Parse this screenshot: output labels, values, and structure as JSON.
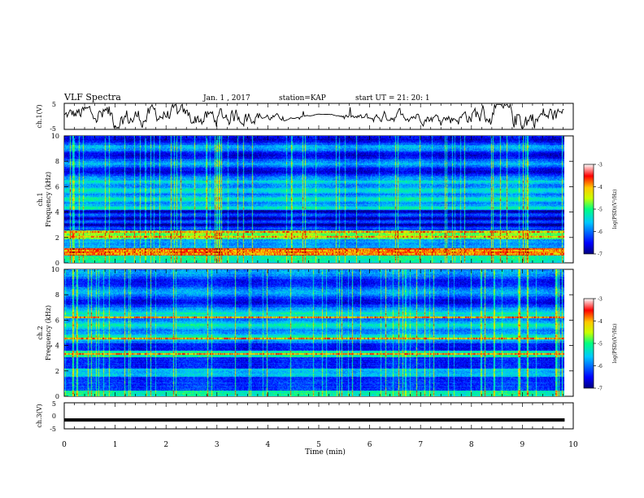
{
  "header": {
    "title": "VLF Spectra",
    "date": "Jan. 1 , 2017",
    "station": "station=KAP",
    "start_ut": "start UT = 21: 20: 1"
  },
  "chart_data": [
    {
      "type": "line",
      "panel": "ch1-waveform",
      "ylabel": "ch.1(V)",
      "ylim": [
        -5,
        5
      ],
      "yticks": [
        "5",
        "-5"
      ],
      "xlim": [
        0,
        10
      ],
      "shape": "noisy waveform, roughly between -3 and +4 V"
    },
    {
      "type": "heatmap",
      "panel": "ch1-spectrogram",
      "ylabel_line1": "ch.1",
      "ylabel_line2": "Frequency (kHz)",
      "ylim": [
        0,
        10
      ],
      "yticks": [
        "0",
        "2",
        "4",
        "6",
        "8",
        "10"
      ],
      "xlim": [
        0,
        10
      ],
      "data_end_min": 9.83,
      "colorbar": {
        "label": "log(PSD)(V²/Hz)",
        "range": [
          -7,
          -3
        ],
        "ticks": [
          "-3",
          "-4",
          "-5",
          "-6",
          "-7"
        ]
      },
      "strong_bands_khz": [
        0.8,
        1.0,
        2.1,
        2.5
      ]
    },
    {
      "type": "heatmap",
      "panel": "ch2-spectrogram",
      "ylabel_line1": "ch.2",
      "ylabel_line2": "Frequency (kHz)",
      "ylim": [
        0,
        10
      ],
      "yticks": [
        "0",
        "2",
        "4",
        "6",
        "8",
        "10"
      ],
      "xlim": [
        0,
        10
      ],
      "data_end_min": 9.83,
      "colorbar": {
        "label": "log(PSD)(V²/Hz)",
        "range": [
          -7,
          -3
        ],
        "ticks": [
          "-3",
          "-4",
          "-5",
          "-6",
          "-7"
        ]
      },
      "strong_bands_khz": [
        3.4,
        4.6,
        6.3
      ]
    },
    {
      "type": "line",
      "panel": "ch3-waveform",
      "ylabel": "ch.3(V)",
      "ylim": [
        -5,
        5
      ],
      "yticks": [
        "5",
        "0",
        "-5"
      ],
      "xlim": [
        0,
        10
      ],
      "constant_value": -1.6
    }
  ],
  "xaxis": {
    "label": "Time (min)",
    "ticks": [
      "0",
      "1",
      "2",
      "3",
      "4",
      "5",
      "6",
      "7",
      "8",
      "9",
      "10"
    ]
  },
  "colors": {
    "waveform": "#000000",
    "colormap": [
      "#000080",
      "#0000ff",
      "#00c8ff",
      "#00ff80",
      "#c8ff00",
      "#ffc800",
      "#ff0000",
      "#800000"
    ]
  }
}
